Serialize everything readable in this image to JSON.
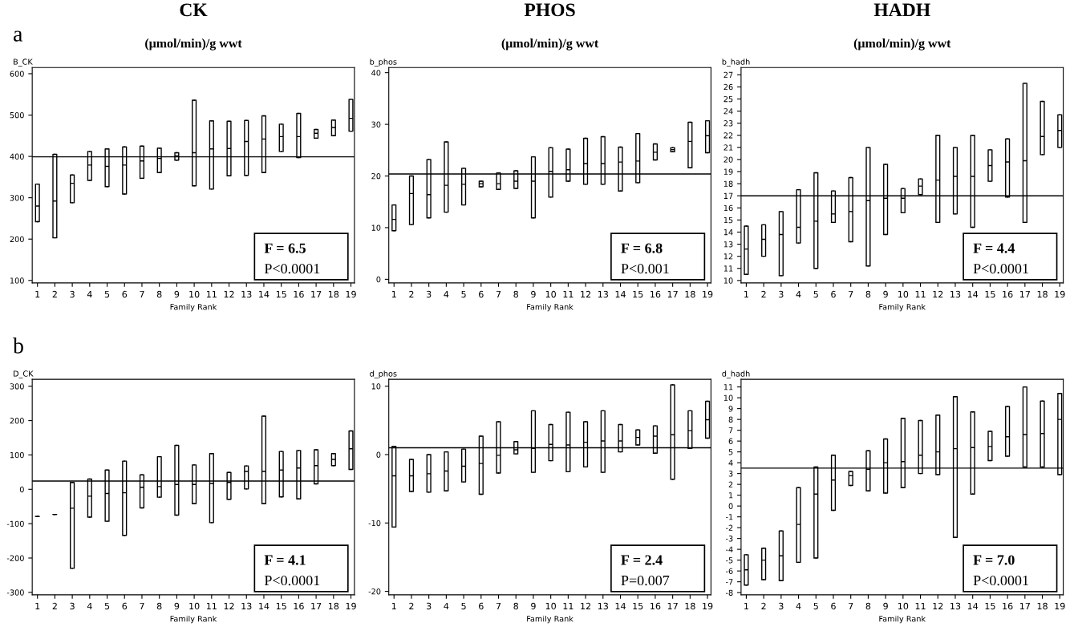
{
  "chart_data": [
    {
      "type": "box",
      "title": "CK",
      "subtitle": "(μmol/min)/g wwt",
      "xlabel": "Family Rank",
      "ylabel": "B_CK",
      "categories": [
        "1",
        "2",
        "3",
        "4",
        "5",
        "6",
        "7",
        "8",
        "9",
        "10",
        "11",
        "12",
        "13",
        "14",
        "15",
        "16",
        "17",
        "18",
        "19"
      ],
      "ylim": [
        94,
        615
      ],
      "yticks": [
        100,
        200,
        300,
        400,
        500,
        600
      ],
      "color": "#000000",
      "grid": false,
      "legend": false,
      "boxes": [
        {
          "low": 242,
          "q1": 242,
          "median": 280,
          "q3": 333,
          "high": 333
        },
        {
          "low": 203,
          "q1": 203,
          "median": 292,
          "q3": 405,
          "high": 405
        },
        {
          "low": 288,
          "q1": 288,
          "median": 335,
          "q3": 355,
          "high": 355
        },
        {
          "low": 342,
          "q1": 342,
          "median": 379,
          "q3": 412,
          "high": 412
        },
        {
          "low": 327,
          "q1": 327,
          "median": 376,
          "q3": 418,
          "high": 418
        },
        {
          "low": 309,
          "q1": 309,
          "median": 379,
          "q3": 423,
          "high": 423
        },
        {
          "low": 347,
          "q1": 347,
          "median": 389,
          "q3": 425,
          "high": 425
        },
        {
          "low": 361,
          "q1": 361,
          "median": 395,
          "q3": 420,
          "high": 420
        },
        {
          "low": 391,
          "q1": 391,
          "median": 401,
          "q3": 409,
          "high": 409
        },
        {
          "low": 329,
          "q1": 329,
          "median": 409,
          "q3": 536,
          "high": 536
        },
        {
          "low": 321,
          "q1": 321,
          "median": 418,
          "q3": 486,
          "high": 486
        },
        {
          "low": 353,
          "q1": 353,
          "median": 419,
          "q3": 485,
          "high": 485
        },
        {
          "low": 354,
          "q1": 354,
          "median": 436,
          "q3": 487,
          "high": 487
        },
        {
          "low": 361,
          "q1": 361,
          "median": 442,
          "q3": 498,
          "high": 498
        },
        {
          "low": 412,
          "q1": 412,
          "median": 448,
          "q3": 478,
          "high": 478
        },
        {
          "low": 397,
          "q1": 397,
          "median": 448,
          "q3": 504,
          "high": 504
        },
        {
          "low": 444,
          "q1": 444,
          "median": 456,
          "q3": 465,
          "high": 465
        },
        {
          "low": 450,
          "q1": 450,
          "median": 470,
          "q3": 488,
          "high": 488
        },
        {
          "low": 461,
          "q1": 461,
          "median": 492,
          "q3": 538,
          "high": 538
        }
      ],
      "ref_lines": [
        {
          "axis": "y",
          "value": 399
        }
      ],
      "annotations": [
        "F = 6.5",
        "P<0.0001",
        "a"
      ]
    },
    {
      "type": "box",
      "title": "PHOS",
      "subtitle": "(μmol/min)/g wwt",
      "xlabel": "Family Rank",
      "ylabel": "b_phos",
      "categories": [
        "1",
        "2",
        "3",
        "4",
        "5",
        "6",
        "7",
        "8",
        "9",
        "10",
        "11",
        "12",
        "13",
        "14",
        "15",
        "16",
        "17",
        "18",
        "19"
      ],
      "ylim": [
        -0.7,
        41
      ],
      "yticks": [
        0,
        10,
        20,
        30,
        40
      ],
      "color": "#000000",
      "grid": false,
      "legend": false,
      "boxes": [
        {
          "low": 9.4,
          "q1": 9.4,
          "median": 11.6,
          "q3": 14.4,
          "high": 14.4
        },
        {
          "low": 10.6,
          "q1": 10.6,
          "median": 16.6,
          "q3": 20.0,
          "high": 20.0
        },
        {
          "low": 11.9,
          "q1": 11.9,
          "median": 16.4,
          "q3": 23.2,
          "high": 23.2
        },
        {
          "low": 13.0,
          "q1": 13.0,
          "median": 18.2,
          "q3": 26.6,
          "high": 26.6
        },
        {
          "low": 14.4,
          "q1": 14.4,
          "median": 18.4,
          "q3": 21.5,
          "high": 21.5
        },
        {
          "low": 17.9,
          "q1": 17.9,
          "median": 18.5,
          "q3": 19.0,
          "high": 19.0
        },
        {
          "low": 17.4,
          "q1": 17.4,
          "median": 18.5,
          "q3": 20.6,
          "high": 20.6
        },
        {
          "low": 17.6,
          "q1": 17.6,
          "median": 19.0,
          "q3": 21.0,
          "high": 21.0
        },
        {
          "low": 11.9,
          "q1": 11.9,
          "median": 19.0,
          "q3": 23.7,
          "high": 23.7
        },
        {
          "low": 15.9,
          "q1": 15.9,
          "median": 20.9,
          "q3": 25.5,
          "high": 25.5
        },
        {
          "low": 19.0,
          "q1": 19.0,
          "median": 21.2,
          "q3": 25.2,
          "high": 25.2
        },
        {
          "low": 18.4,
          "q1": 18.4,
          "median": 22.4,
          "q3": 27.3,
          "high": 27.3
        },
        {
          "low": 18.4,
          "q1": 18.4,
          "median": 22.4,
          "q3": 27.6,
          "high": 27.6
        },
        {
          "low": 17.1,
          "q1": 17.1,
          "median": 22.7,
          "q3": 25.6,
          "high": 25.6
        },
        {
          "low": 18.7,
          "q1": 18.7,
          "median": 22.9,
          "q3": 28.2,
          "high": 28.2
        },
        {
          "low": 23.1,
          "q1": 23.1,
          "median": 24.6,
          "q3": 26.2,
          "high": 26.2
        },
        {
          "low": 24.7,
          "q1": 24.7,
          "median": 25.1,
          "q3": 25.5,
          "high": 25.5
        },
        {
          "low": 21.6,
          "q1": 21.6,
          "median": 26.7,
          "q3": 30.4,
          "high": 30.4
        },
        {
          "low": 24.5,
          "q1": 24.5,
          "median": 27.8,
          "q3": 30.7,
          "high": 30.7
        }
      ],
      "ref_lines": [
        {
          "axis": "y",
          "value": 20.4
        }
      ],
      "annotations": [
        "F = 6.8",
        "P<0.001"
      ]
    },
    {
      "type": "box",
      "title": "HADH",
      "subtitle": "(μmol/min)/g wwt",
      "xlabel": "Family Rank",
      "ylabel": "b_hadh",
      "categories": [
        "1",
        "2",
        "3",
        "4",
        "5",
        "6",
        "7",
        "8",
        "9",
        "10",
        "11",
        "12",
        "13",
        "14",
        "15",
        "16",
        "17",
        "18",
        "19"
      ],
      "ylim": [
        9.8,
        27.6
      ],
      "yticks": [
        10,
        11,
        12,
        13,
        14,
        15,
        16,
        17,
        18,
        19,
        20,
        21,
        22,
        23,
        24,
        25,
        26,
        27
      ],
      "color": "#000000",
      "grid": false,
      "legend": false,
      "boxes": [
        {
          "low": 10.5,
          "q1": 10.5,
          "median": 12.6,
          "q3": 14.5,
          "high": 14.5
        },
        {
          "low": 12.0,
          "q1": 12.0,
          "median": 13.4,
          "q3": 14.6,
          "high": 14.6
        },
        {
          "low": 10.4,
          "q1": 10.4,
          "median": 13.8,
          "q3": 15.7,
          "high": 15.7
        },
        {
          "low": 13.1,
          "q1": 13.1,
          "median": 14.4,
          "q3": 17.5,
          "high": 17.5
        },
        {
          "low": 11.0,
          "q1": 11.0,
          "median": 14.9,
          "q3": 18.9,
          "high": 18.9
        },
        {
          "low": 14.8,
          "q1": 14.8,
          "median": 15.5,
          "q3": 17.4,
          "high": 17.4
        },
        {
          "low": 13.2,
          "q1": 13.2,
          "median": 15.7,
          "q3": 18.5,
          "high": 18.5
        },
        {
          "low": 11.2,
          "q1": 11.2,
          "median": 16.6,
          "q3": 21.0,
          "high": 21.0
        },
        {
          "low": 13.8,
          "q1": 13.8,
          "median": 16.8,
          "q3": 19.6,
          "high": 19.6
        },
        {
          "low": 15.6,
          "q1": 15.6,
          "median": 16.8,
          "q3": 17.6,
          "high": 17.6
        },
        {
          "low": 17.1,
          "q1": 17.1,
          "median": 17.8,
          "q3": 18.4,
          "high": 18.4
        },
        {
          "low": 14.8,
          "q1": 14.8,
          "median": 18.3,
          "q3": 22.0,
          "high": 22.0
        },
        {
          "low": 15.5,
          "q1": 15.5,
          "median": 18.6,
          "q3": 21.0,
          "high": 21.0
        },
        {
          "low": 14.4,
          "q1": 14.4,
          "median": 18.6,
          "q3": 22.0,
          "high": 22.0
        },
        {
          "low": 18.2,
          "q1": 18.2,
          "median": 19.5,
          "q3": 20.8,
          "high": 20.8
        },
        {
          "low": 16.9,
          "q1": 16.9,
          "median": 19.8,
          "q3": 21.7,
          "high": 21.7
        },
        {
          "low": 14.8,
          "q1": 14.8,
          "median": 19.9,
          "q3": 26.3,
          "high": 26.3
        },
        {
          "low": 20.4,
          "q1": 20.4,
          "median": 21.9,
          "q3": 24.8,
          "high": 24.8
        },
        {
          "low": 21.0,
          "q1": 21.0,
          "median": 22.4,
          "q3": 23.7,
          "high": 23.7
        }
      ],
      "ref_lines": [
        {
          "axis": "y",
          "value": 17.0
        }
      ],
      "annotations": [
        "F = 4.4",
        "P<0.0001"
      ]
    },
    {
      "type": "box",
      "xlabel": "Family Rank",
      "ylabel": "D_CK",
      "categories": [
        "1",
        "2",
        "3",
        "4",
        "5",
        "6",
        "7",
        "8",
        "9",
        "10",
        "11",
        "12",
        "13",
        "14",
        "15",
        "16",
        "17",
        "18",
        "19"
      ],
      "ylim": [
        -307,
        320
      ],
      "yticks": [
        {
          "value": -300,
          "label": "-300"
        },
        {
          "value": -200,
          "label": "-200"
        },
        {
          "value": -100,
          "label": "-100"
        },
        0,
        100,
        200,
        300
      ],
      "color": "#000000",
      "grid": false,
      "legend": false,
      "boxes": [
        {
          "low": -79,
          "q1": -79,
          "median": -79,
          "q3": -79,
          "high": -79
        },
        {
          "low": -73,
          "q1": -73,
          "median": -73,
          "q3": -73,
          "high": -73
        },
        {
          "low": -230,
          "q1": -230,
          "median": -55,
          "q3": 20,
          "high": 20
        },
        {
          "low": -81,
          "q1": -81,
          "median": -20,
          "q3": 30,
          "high": 30
        },
        {
          "low": -93,
          "q1": -93,
          "median": -12,
          "q3": 56,
          "high": 56
        },
        {
          "low": -134,
          "q1": -134,
          "median": -10,
          "q3": 82,
          "high": 82
        },
        {
          "low": -54,
          "q1": -54,
          "median": 6,
          "q3": 42,
          "high": 42
        },
        {
          "low": -23,
          "q1": -23,
          "median": 8,
          "q3": 95,
          "high": 95
        },
        {
          "low": -75,
          "q1": -75,
          "median": 14,
          "q3": 128,
          "high": 128
        },
        {
          "low": -42,
          "q1": -42,
          "median": 14,
          "q3": 71,
          "high": 71
        },
        {
          "low": -97,
          "q1": -97,
          "median": 17,
          "q3": 104,
          "high": 104
        },
        {
          "low": -29,
          "q1": -29,
          "median": 20,
          "q3": 49,
          "high": 49
        },
        {
          "low": 1,
          "q1": 1,
          "median": 52,
          "q3": 68,
          "high": 68
        },
        {
          "low": -42,
          "q1": -42,
          "median": 52,
          "q3": 213,
          "high": 213
        },
        {
          "low": -22,
          "q1": -22,
          "median": 56,
          "q3": 110,
          "high": 110
        },
        {
          "low": -28,
          "q1": -28,
          "median": 62,
          "q3": 113,
          "high": 113
        },
        {
          "low": 16,
          "q1": 16,
          "median": 69,
          "q3": 115,
          "high": 115
        },
        {
          "low": 69,
          "q1": 69,
          "median": 87,
          "q3": 104,
          "high": 104
        },
        {
          "low": 58,
          "q1": 58,
          "median": 118,
          "q3": 170,
          "high": 170
        }
      ],
      "ref_lines": [
        {
          "axis": "y",
          "value": 24
        }
      ],
      "annotations": [
        "F = 4.1",
        "P<0.0001",
        "b"
      ]
    },
    {
      "type": "box",
      "xlabel": "Family Rank",
      "ylabel": "d_phos",
      "categories": [
        "1",
        "2",
        "3",
        "4",
        "5",
        "6",
        "7",
        "8",
        "9",
        "10",
        "11",
        "12",
        "13",
        "14",
        "15",
        "16",
        "17",
        "18",
        "19"
      ],
      "ylim": [
        -20.5,
        11
      ],
      "yticks": [
        {
          "value": -20,
          "label": "-20"
        },
        {
          "value": -10,
          "label": "-10"
        },
        0,
        10
      ],
      "color": "#000000",
      "grid": false,
      "legend": false,
      "boxes": [
        {
          "low": -10.6,
          "q1": -10.6,
          "median": -3.1,
          "q3": 1.2,
          "high": 1.2
        },
        {
          "low": -5.4,
          "q1": -5.4,
          "median": -3.1,
          "q3": -0.7,
          "high": -0.7
        },
        {
          "low": -5.5,
          "q1": -5.5,
          "median": -2.8,
          "q3": 0.0,
          "high": 0.0
        },
        {
          "low": -5.3,
          "q1": -5.3,
          "median": -2.4,
          "q3": 0.4,
          "high": 0.4
        },
        {
          "low": -4.0,
          "q1": -4.0,
          "median": -1.7,
          "q3": 0.8,
          "high": 0.8
        },
        {
          "low": -5.8,
          "q1": -5.8,
          "median": -1.3,
          "q3": 2.7,
          "high": 2.7
        },
        {
          "low": -2.7,
          "q1": -2.7,
          "median": -0.1,
          "q3": 4.8,
          "high": 4.8
        },
        {
          "low": 0.1,
          "q1": 0.1,
          "median": 0.7,
          "q3": 1.9,
          "high": 1.9
        },
        {
          "low": -2.6,
          "q1": -2.6,
          "median": 0.9,
          "q3": 6.4,
          "high": 6.4
        },
        {
          "low": -0.9,
          "q1": -0.9,
          "median": 1.5,
          "q3": 4.4,
          "high": 4.4
        },
        {
          "low": -2.5,
          "q1": -2.5,
          "median": 1.4,
          "q3": 6.2,
          "high": 6.2
        },
        {
          "low": -1.8,
          "q1": -1.8,
          "median": 1.8,
          "q3": 4.8,
          "high": 4.8
        },
        {
          "low": -2.6,
          "q1": -2.6,
          "median": 2.0,
          "q3": 6.4,
          "high": 6.4
        },
        {
          "low": 0.4,
          "q1": 0.4,
          "median": 2.0,
          "q3": 4.4,
          "high": 4.4
        },
        {
          "low": 1.4,
          "q1": 1.4,
          "median": 2.5,
          "q3": 3.6,
          "high": 3.6
        },
        {
          "low": 0.2,
          "q1": 0.2,
          "median": 2.7,
          "q3": 4.2,
          "high": 4.2
        },
        {
          "low": -3.6,
          "q1": -3.6,
          "median": 2.9,
          "q3": 10.2,
          "high": 10.2
        },
        {
          "low": 0.9,
          "q1": 0.9,
          "median": 3.5,
          "q3": 6.4,
          "high": 6.4
        },
        {
          "low": 2.4,
          "q1": 2.4,
          "median": 5.1,
          "q3": 7.8,
          "high": 7.8
        }
      ],
      "ref_lines": [
        {
          "axis": "y",
          "value": 1.0
        }
      ],
      "annotations": [
        "F = 2.4",
        "P=0.007"
      ]
    },
    {
      "type": "box",
      "xlabel": "Family Rank",
      "ylabel": "d_hadh",
      "categories": [
        "1",
        "2",
        "3",
        "4",
        "5",
        "6",
        "7",
        "8",
        "9",
        "10",
        "11",
        "12",
        "13",
        "14",
        "15",
        "16",
        "17",
        "18",
        "19"
      ],
      "ylim": [
        -8.2,
        11.7
      ],
      "yticks": [
        {
          "value": -8,
          "label": "-8"
        },
        {
          "value": -7,
          "label": "-7"
        },
        {
          "value": -6,
          "label": "-6"
        },
        {
          "value": -5,
          "label": "-5"
        },
        {
          "value": -4,
          "label": "-4"
        },
        {
          "value": -3,
          "label": "-3"
        },
        {
          "value": -2,
          "label": "-2"
        },
        {
          "value": -1,
          "label": "-1"
        },
        0,
        1,
        2,
        3,
        4,
        5,
        6,
        7,
        8,
        9,
        10,
        11
      ],
      "color": "#000000",
      "grid": false,
      "legend": false,
      "boxes": [
        {
          "low": -7.3,
          "q1": -7.3,
          "median": -5.9,
          "q3": -4.5,
          "high": -4.5
        },
        {
          "low": -6.8,
          "q1": -6.8,
          "median": -5.0,
          "q3": -3.9,
          "high": -3.9
        },
        {
          "low": -6.9,
          "q1": -6.9,
          "median": -4.6,
          "q3": -2.3,
          "high": -2.3
        },
        {
          "low": -5.2,
          "q1": -5.2,
          "median": -1.7,
          "q3": 1.7,
          "high": 1.7
        },
        {
          "low": -4.8,
          "q1": -4.8,
          "median": 1.1,
          "q3": 3.6,
          "high": 3.6
        },
        {
          "low": -0.4,
          "q1": -0.4,
          "median": 2.4,
          "q3": 4.7,
          "high": 4.7
        },
        {
          "low": 1.9,
          "q1": 1.9,
          "median": 2.8,
          "q3": 3.2,
          "high": 3.2
        },
        {
          "low": 1.4,
          "q1": 1.4,
          "median": 3.4,
          "q3": 5.1,
          "high": 5.1
        },
        {
          "low": 1.2,
          "q1": 1.2,
          "median": 4.0,
          "q3": 6.2,
          "high": 6.2
        },
        {
          "low": 1.7,
          "q1": 1.7,
          "median": 4.1,
          "q3": 8.1,
          "high": 8.1
        },
        {
          "low": 3.0,
          "q1": 3.0,
          "median": 4.7,
          "q3": 7.9,
          "high": 7.9
        },
        {
          "low": 2.9,
          "q1": 2.9,
          "median": 5.0,
          "q3": 8.4,
          "high": 8.4
        },
        {
          "low": -2.9,
          "q1": -2.9,
          "median": 5.3,
          "q3": 10.1,
          "high": 10.1
        },
        {
          "low": 1.1,
          "q1": 1.1,
          "median": 5.4,
          "q3": 8.7,
          "high": 8.7
        },
        {
          "low": 4.2,
          "q1": 4.2,
          "median": 5.5,
          "q3": 6.9,
          "high": 6.9
        },
        {
          "low": 4.6,
          "q1": 4.6,
          "median": 6.4,
          "q3": 9.2,
          "high": 9.2
        },
        {
          "low": 3.6,
          "q1": 3.6,
          "median": 6.6,
          "q3": 11.0,
          "high": 11.0
        },
        {
          "low": 3.6,
          "q1": 3.6,
          "median": 6.7,
          "q3": 9.7,
          "high": 9.7
        },
        {
          "low": 2.9,
          "q1": 2.9,
          "median": 8.0,
          "q3": 10.4,
          "high": 10.4
        }
      ],
      "ref_lines": [
        {
          "axis": "y",
          "value": 3.5
        }
      ],
      "annotations": [
        "F = 7.0",
        "P<0.0001"
      ]
    }
  ]
}
